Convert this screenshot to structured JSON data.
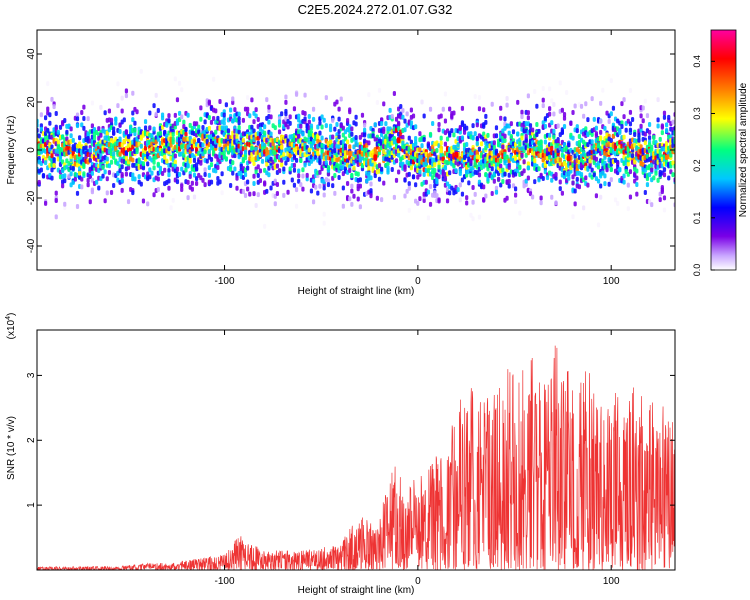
{
  "title": "C2E5.2024.272.01.07.G32",
  "chart_data": [
    {
      "type": "heatmap",
      "xlabel": "Height of straight line (km)",
      "ylabel": "Frequency (Hz)",
      "xlim": [
        -197,
        133
      ],
      "ylim": [
        -50,
        50
      ],
      "x_ticks": [
        -100,
        0,
        100
      ],
      "x_tick_labels": [
        "-100",
        "0",
        "100"
      ],
      "y_ticks": [
        -40,
        -20,
        0,
        20,
        40
      ],
      "y_tick_labels": [
        "-40",
        "-20",
        "0",
        "20",
        "40"
      ],
      "colorbar": {
        "label": "Normalized spectral amplitude",
        "range": [
          0,
          0.46
        ],
        "ticks": [
          0,
          0.1,
          0.2,
          0.3,
          0.4
        ],
        "tick_labels": [
          "0.0",
          "0.1",
          "0.2",
          "0.3",
          "0.4"
        ]
      },
      "colormap": [
        "#ffffff",
        "#7a00e6",
        "#0000ff",
        "#00c8ff",
        "#00ff80",
        "#ffff00",
        "#ff8000",
        "#ff0000",
        "#ff00a0"
      ],
      "ridge_center_hz": [
        {
          "x": -180,
          "y": -3
        },
        {
          "x": -160,
          "y": 0
        },
        {
          "x": -140,
          "y": 1
        },
        {
          "x": -120,
          "y": 2
        },
        {
          "x": -100,
          "y": 3
        },
        {
          "x": -80,
          "y": 0
        },
        {
          "x": -60,
          "y": 1
        },
        {
          "x": -40,
          "y": -1
        },
        {
          "x": -22,
          "y": -3
        },
        {
          "x": -10,
          "y": 4
        },
        {
          "x": 0,
          "y": -4
        },
        {
          "x": 20,
          "y": -2
        },
        {
          "x": 40,
          "y": -3
        },
        {
          "x": 60,
          "y": 1
        },
        {
          "x": 80,
          "y": -4
        },
        {
          "x": 100,
          "y": 2
        },
        {
          "x": 120,
          "y": -3
        },
        {
          "x": 133,
          "y": -1
        }
      ],
      "peak_amplitude": 0.45
    },
    {
      "type": "area",
      "xlabel": "Height of straight line (km)",
      "ylabel": "SNR (10 * v/v)",
      "y_scale_label": "(x10",
      "y_scale_exponent": "4",
      "y_scale_suffix": ")",
      "xlim": [
        -197,
        133
      ],
      "ylim": [
        0,
        3.7
      ],
      "x_ticks": [
        -100,
        0,
        100
      ],
      "x_tick_labels": [
        "-100",
        "0",
        "100"
      ],
      "y_ticks": [
        1,
        2,
        3
      ],
      "y_tick_labels": [
        "1",
        "2",
        "3"
      ],
      "color": "#ee3333",
      "envelope": [
        {
          "x": -197,
          "y": 0.05
        },
        {
          "x": -160,
          "y": 0.06
        },
        {
          "x": -140,
          "y": 0.1
        },
        {
          "x": -120,
          "y": 0.15
        },
        {
          "x": -100,
          "y": 0.25
        },
        {
          "x": -92,
          "y": 0.55
        },
        {
          "x": -80,
          "y": 0.3
        },
        {
          "x": -60,
          "y": 0.3
        },
        {
          "x": -40,
          "y": 0.4
        },
        {
          "x": -30,
          "y": 0.9
        },
        {
          "x": -20,
          "y": 0.7
        },
        {
          "x": -14,
          "y": 1.8
        },
        {
          "x": -5,
          "y": 1.3
        },
        {
          "x": 5,
          "y": 1.6
        },
        {
          "x": 15,
          "y": 2.0
        },
        {
          "x": 25,
          "y": 3.0
        },
        {
          "x": 35,
          "y": 2.6
        },
        {
          "x": 45,
          "y": 3.1
        },
        {
          "x": 55,
          "y": 3.2
        },
        {
          "x": 60,
          "y": 3.3
        },
        {
          "x": 70,
          "y": 3.6
        },
        {
          "x": 80,
          "y": 3.0
        },
        {
          "x": 90,
          "y": 3.1
        },
        {
          "x": 100,
          "y": 2.7
        },
        {
          "x": 110,
          "y": 2.9
        },
        {
          "x": 120,
          "y": 2.6
        },
        {
          "x": 133,
          "y": 2.5
        }
      ]
    }
  ]
}
